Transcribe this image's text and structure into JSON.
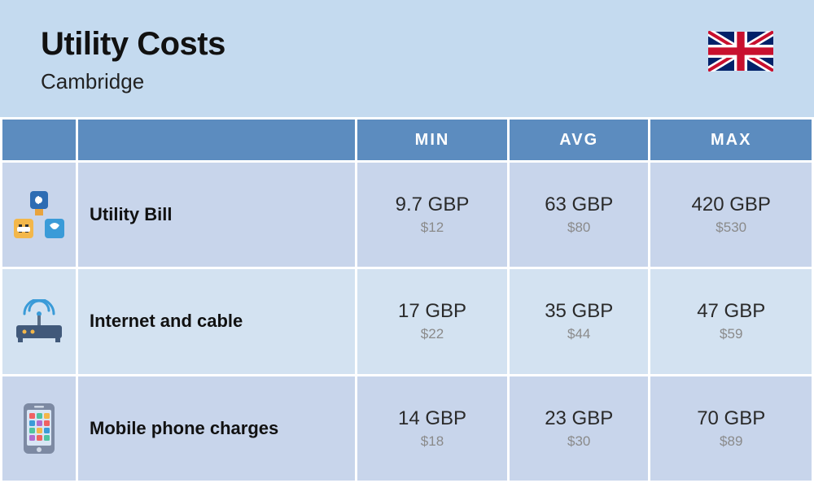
{
  "header": {
    "title": "Utility Costs",
    "subtitle": "Cambridge"
  },
  "colors": {
    "page_bg": "#c4daef",
    "title_color": "#111111",
    "subtitle_color": "#222222",
    "th_bg": "#5c8cbf",
    "th_text": "#ffffff",
    "row_odd_bg": "#c8d5eb",
    "row_even_bg": "#d3e2f1",
    "primary_text": "#2a2a2a",
    "secondary_text": "#8a8a8a",
    "border_spacing_bg": "#ffffff"
  },
  "typography": {
    "title_fontsize": 40,
    "subtitle_fontsize": 26,
    "th_fontsize": 20,
    "label_fontsize": 22,
    "primary_fontsize": 24,
    "secondary_fontsize": 17
  },
  "table": {
    "columns": [
      "MIN",
      "AVG",
      "MAX"
    ],
    "rows": [
      {
        "icon": "utility",
        "label": "Utility Bill",
        "cells": [
          {
            "primary": "9.7 GBP",
            "secondary": "$12"
          },
          {
            "primary": "63 GBP",
            "secondary": "$80"
          },
          {
            "primary": "420 GBP",
            "secondary": "$530"
          }
        ]
      },
      {
        "icon": "router",
        "label": "Internet and cable",
        "cells": [
          {
            "primary": "17 GBP",
            "secondary": "$22"
          },
          {
            "primary": "35 GBP",
            "secondary": "$44"
          },
          {
            "primary": "47 GBP",
            "secondary": "$59"
          }
        ]
      },
      {
        "icon": "phone",
        "label": "Mobile phone charges",
        "cells": [
          {
            "primary": "14 GBP",
            "secondary": "$18"
          },
          {
            "primary": "23 GBP",
            "secondary": "$30"
          },
          {
            "primary": "70 GBP",
            "secondary": "$89"
          }
        ]
      }
    ]
  }
}
